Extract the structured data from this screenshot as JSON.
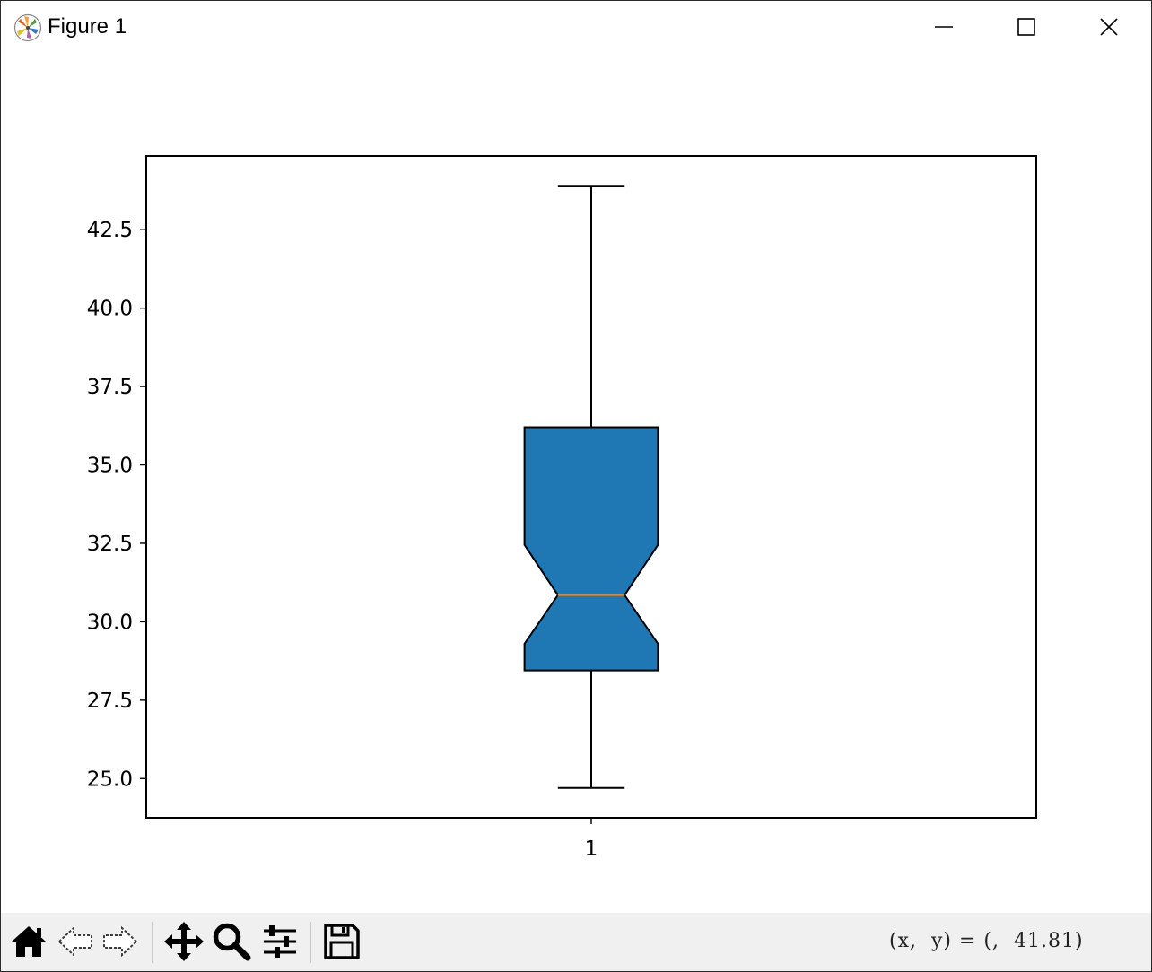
{
  "window": {
    "title": "Figure 1"
  },
  "toolbar": {
    "buttons": [
      {
        "name": "home-icon",
        "label": "Home"
      },
      {
        "name": "back-icon",
        "label": "Back"
      },
      {
        "name": "forward-icon",
        "label": "Forward"
      },
      {
        "name": "pan-icon",
        "label": "Pan"
      },
      {
        "name": "zoom-icon",
        "label": "Zoom"
      },
      {
        "name": "configure-subplots-icon",
        "label": "Subplots"
      },
      {
        "name": "save-icon",
        "label": "Save"
      }
    ],
    "coordinates": "(x,  y) = (,  41.81)"
  },
  "colors": {
    "box_fill": "#1f77b4",
    "median": "#ff7f0e",
    "toolbar_bg": "#f0f0f0"
  },
  "chart_data": {
    "type": "boxplot",
    "notched": true,
    "categories": [
      "1"
    ],
    "boxes": [
      {
        "label": "1",
        "whisker_low": 24.7,
        "q1": 28.45,
        "median": 30.85,
        "q3": 36.2,
        "whisker_high": 43.9,
        "notch_low": 29.3,
        "notch_high": 32.45
      }
    ],
    "yticks": [
      "25.0",
      "27.5",
      "30.0",
      "32.5",
      "35.0",
      "37.5",
      "40.0",
      "42.5"
    ],
    "ylim": [
      23.75,
      44.85
    ],
    "xlim": [
      0.5,
      1.5
    ],
    "title": "",
    "xlabel": "",
    "ylabel": "",
    "grid": false
  }
}
